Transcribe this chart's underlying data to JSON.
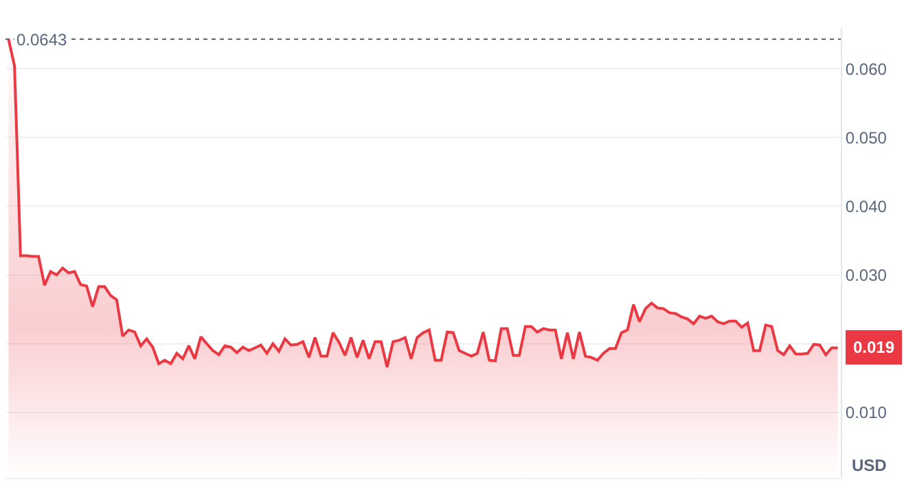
{
  "chart_data": {
    "type": "area",
    "categories": [
      null,
      null,
      null,
      null,
      null,
      null,
      null,
      null,
      null,
      null,
      null,
      null,
      null,
      null,
      null,
      null,
      null,
      null,
      null,
      null,
      null,
      null,
      null,
      null,
      null,
      null,
      null,
      null,
      null,
      null,
      null,
      null,
      null,
      null,
      null,
      null,
      null,
      null,
      null,
      null,
      null,
      null,
      null,
      null,
      null,
      null,
      null,
      null,
      null,
      null,
      null,
      null,
      null,
      null,
      null,
      null,
      null,
      null,
      null,
      null,
      null,
      null,
      null,
      null,
      null,
      null,
      null,
      null,
      null,
      null,
      null,
      null,
      null,
      null,
      null,
      null,
      null,
      null,
      null,
      null,
      null,
      null,
      null,
      null,
      null,
      null,
      null,
      null,
      null,
      null,
      null,
      null,
      null,
      null,
      null,
      null,
      null,
      null,
      null,
      null,
      null,
      null,
      null,
      null,
      null,
      null,
      null,
      null,
      null,
      null,
      null,
      null,
      null,
      null,
      null,
      null,
      null,
      null,
      null,
      null,
      null,
      null,
      null,
      null,
      null,
      null,
      null,
      null,
      null,
      null,
      null,
      null,
      null,
      null,
      null,
      null,
      null,
      null,
      null
    ],
    "series": [
      {
        "color": "#ea3943",
        "values": [
          0.0643,
          0.0604,
          0.0328,
          0.0328,
          0.0327,
          0.0327,
          0.0285,
          0.0305,
          0.03,
          0.031,
          0.0303,
          0.0305,
          0.0286,
          0.0284,
          0.0254,
          0.0283,
          0.0283,
          0.027,
          0.0264,
          0.0211,
          0.022,
          0.0217,
          0.0197,
          0.0207,
          0.0195,
          0.0171,
          0.0176,
          0.0171,
          0.0186,
          0.0178,
          0.0197,
          0.0178,
          0.021,
          0.02,
          0.019,
          0.0184,
          0.0197,
          0.0195,
          0.0187,
          0.0195,
          0.019,
          0.0194,
          0.0198,
          0.0186,
          0.02,
          0.0189,
          0.0207,
          0.0198,
          0.0199,
          0.0203,
          0.018,
          0.0209,
          0.0182,
          0.0182,
          0.0216,
          0.0202,
          0.0183,
          0.0209,
          0.018,
          0.0205,
          0.0178,
          0.0203,
          0.0203,
          0.0166,
          0.0203,
          0.0205,
          0.0209,
          0.0178,
          0.0209,
          0.0216,
          0.022,
          0.0176,
          0.0176,
          0.0217,
          0.0216,
          0.019,
          0.0186,
          0.0182,
          0.0186,
          0.0217,
          0.0176,
          0.0175,
          0.0222,
          0.0222,
          0.0183,
          0.0183,
          0.0225,
          0.0225,
          0.0217,
          0.0222,
          0.022,
          0.022,
          0.0178,
          0.0216,
          0.0178,
          0.0217,
          0.0182,
          0.018,
          0.0176,
          0.0186,
          0.0193,
          0.0193,
          0.0216,
          0.022,
          0.0257,
          0.0232,
          0.0251,
          0.0259,
          0.0252,
          0.0251,
          0.0245,
          0.0244,
          0.0239,
          0.0236,
          0.0229,
          0.024,
          0.0237,
          0.024,
          0.0232,
          0.0229,
          0.0233,
          0.0233,
          0.0224,
          0.023,
          0.019,
          0.019,
          0.0227,
          0.0225,
          0.019,
          0.0184,
          0.0197,
          0.0185,
          0.0185,
          0.0186,
          0.0199,
          0.0198,
          0.0184,
          0.0194,
          0.0194
        ]
      }
    ],
    "ylim": [
      0.0005,
      0.066
    ],
    "yticks": [
      {
        "value": 0.01,
        "label": "0.010"
      },
      {
        "value": 0.02,
        "label": null
      },
      {
        "value": 0.03,
        "label": "0.030"
      },
      {
        "value": 0.04,
        "label": "0.040"
      },
      {
        "value": 0.05,
        "label": "0.050"
      },
      {
        "value": 0.06,
        "label": "0.060"
      }
    ],
    "grid": "y",
    "legend": false,
    "tick_labels": "y",
    "ref_lines": [
      {
        "axis": "y",
        "value": 0.0643,
        "label": "0.0643",
        "color": "#58667e",
        "line_style": "dotted"
      }
    ],
    "annotations": [
      "0.019",
      "USD"
    ]
  }
}
